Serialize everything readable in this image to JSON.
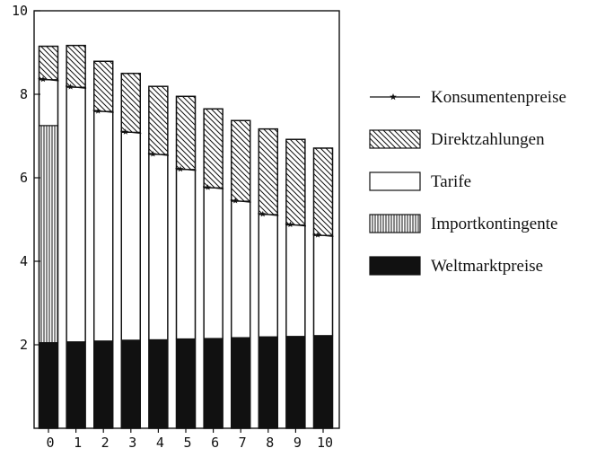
{
  "chart_data": {
    "type": "bar",
    "stacked": true,
    "categories": [
      "0",
      "1",
      "2",
      "3",
      "4",
      "5",
      "6",
      "7",
      "8",
      "9",
      "10"
    ],
    "ylim": [
      0,
      10
    ],
    "yticks": [
      "2",
      "4",
      "6",
      "8",
      "10"
    ],
    "grid": false,
    "legend_position": "right",
    "series": [
      {
        "name": "Weltmarktpreise",
        "pattern": "solid-black",
        "values": [
          2.05,
          2.07,
          2.09,
          2.11,
          2.12,
          2.14,
          2.15,
          2.17,
          2.19,
          2.2,
          2.22
        ]
      },
      {
        "name": "Importkontingente",
        "pattern": "vertical-hatch",
        "values": [
          5.2,
          0,
          0,
          0,
          0,
          0,
          0,
          0,
          0,
          0,
          0
        ]
      },
      {
        "name": "Tarife",
        "pattern": "white",
        "values": [
          1.1,
          6.1,
          5.5,
          4.98,
          4.44,
          4.06,
          3.61,
          3.27,
          2.93,
          2.67,
          2.4
        ]
      },
      {
        "name": "Direktzahlungen",
        "pattern": "diagonal-hatch",
        "values": [
          0.8,
          1.0,
          1.2,
          1.41,
          1.63,
          1.75,
          1.89,
          1.93,
          2.05,
          2.05,
          2.09
        ]
      }
    ],
    "line_series": {
      "name": "Konsumentenpreise",
      "marker": "star",
      "values": [
        8.35,
        8.17,
        7.59,
        7.09,
        6.56,
        6.2,
        5.76,
        5.44,
        5.12,
        4.87,
        4.62
      ]
    },
    "legend": [
      {
        "key": "Konsumentenpreise",
        "swatch": "line-star"
      },
      {
        "key": "Direktzahlungen",
        "swatch": "diagonal-hatch"
      },
      {
        "key": "Tarife",
        "swatch": "white"
      },
      {
        "key": "Importkontingente",
        "swatch": "vertical-hatch"
      },
      {
        "key": "Weltmarktpreise",
        "swatch": "solid-black"
      }
    ],
    "colors": {
      "ink": "#111111",
      "paper": "#ffffff"
    }
  }
}
